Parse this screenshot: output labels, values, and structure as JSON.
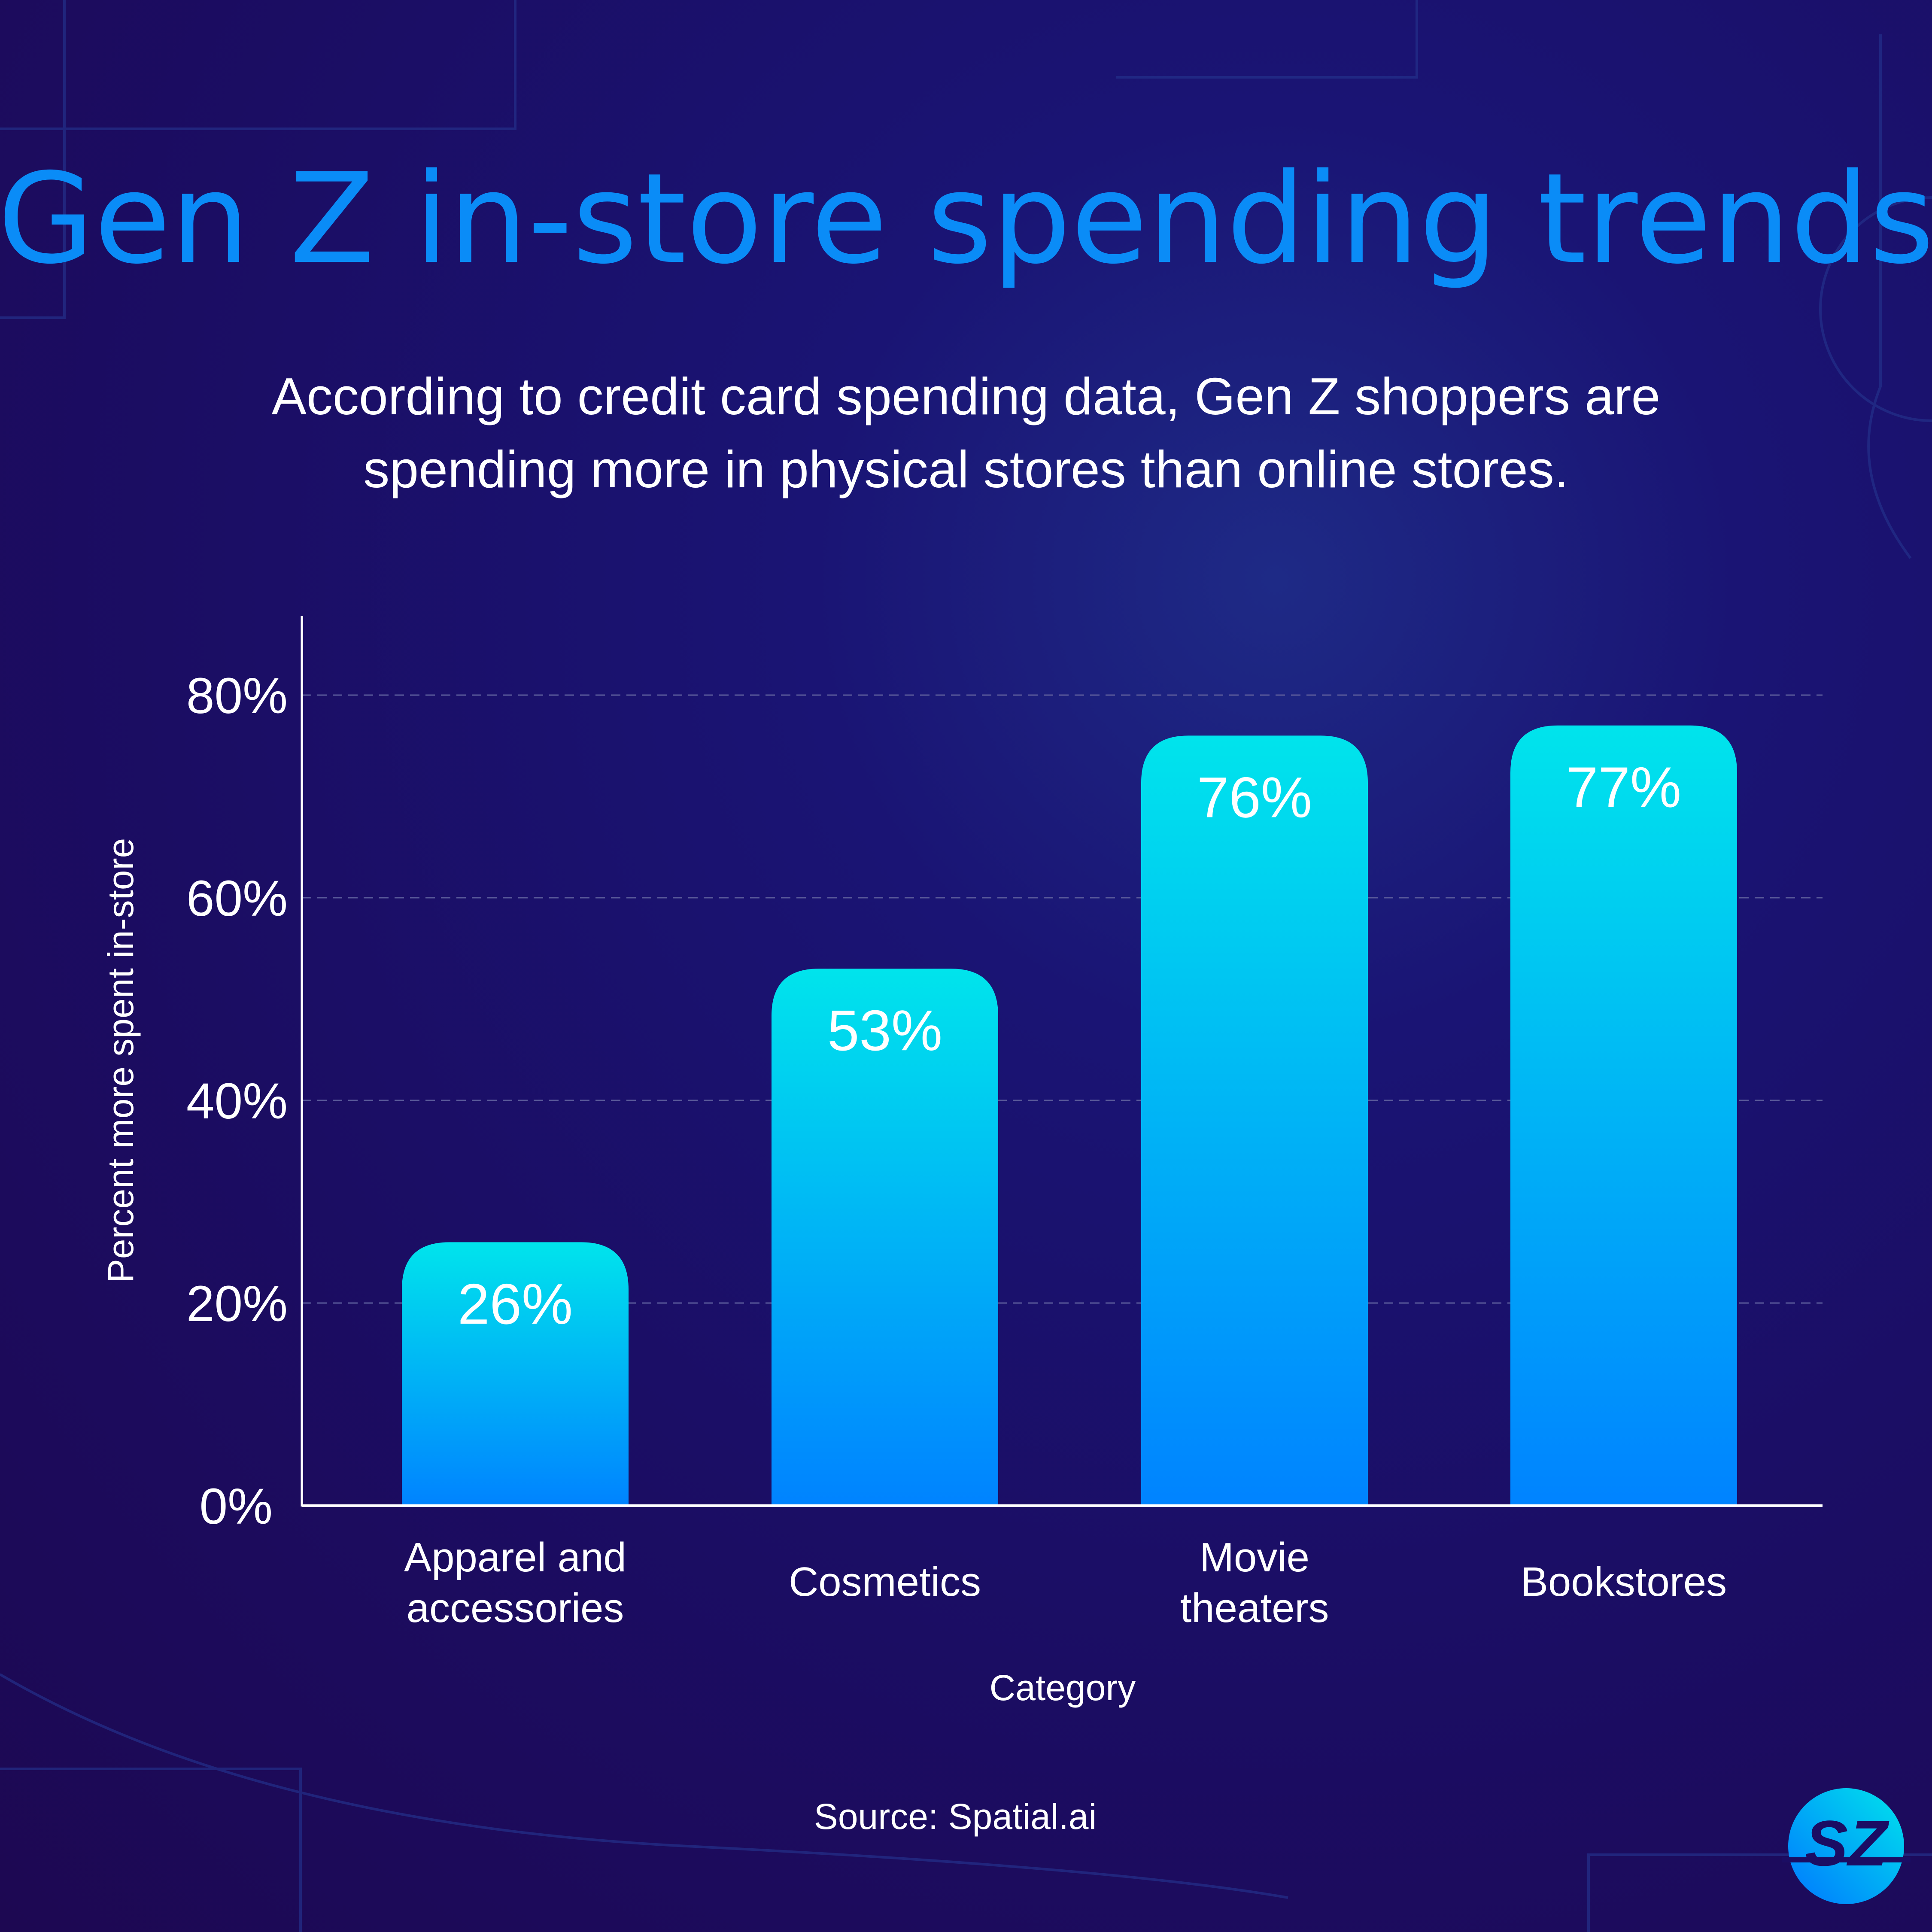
{
  "title": "Gen Z in-store spending trends",
  "subtitle": [
    "According to credit card spending data, Gen Z shoppers are",
    "spending more in physical stores than online stores."
  ],
  "source": "Source: Spatial.ai",
  "logo_text": "SZ",
  "colors": {
    "title": "#0a8cf7",
    "bar_top": "#00e4ec",
    "bar_bottom": "#0083ff",
    "background": "#1b0d63"
  },
  "chart_data": {
    "type": "bar",
    "categories": [
      [
        "Apparel and",
        "accessories"
      ],
      [
        "Cosmetics"
      ],
      [
        "Movie",
        "theaters"
      ],
      [
        "Bookstores"
      ]
    ],
    "values": [
      26,
      53,
      76,
      77
    ],
    "data_labels": [
      "26%",
      "53%",
      "76%",
      "77%"
    ],
    "xlabel": "Category",
    "ylabel": "Percent more spent in-store",
    "ylim": [
      0,
      88
    ],
    "yticks": [
      0,
      20,
      40,
      60,
      80
    ],
    "ytick_labels": [
      "0%",
      "20%",
      "40%",
      "60%",
      "80%"
    ],
    "grid": true
  }
}
